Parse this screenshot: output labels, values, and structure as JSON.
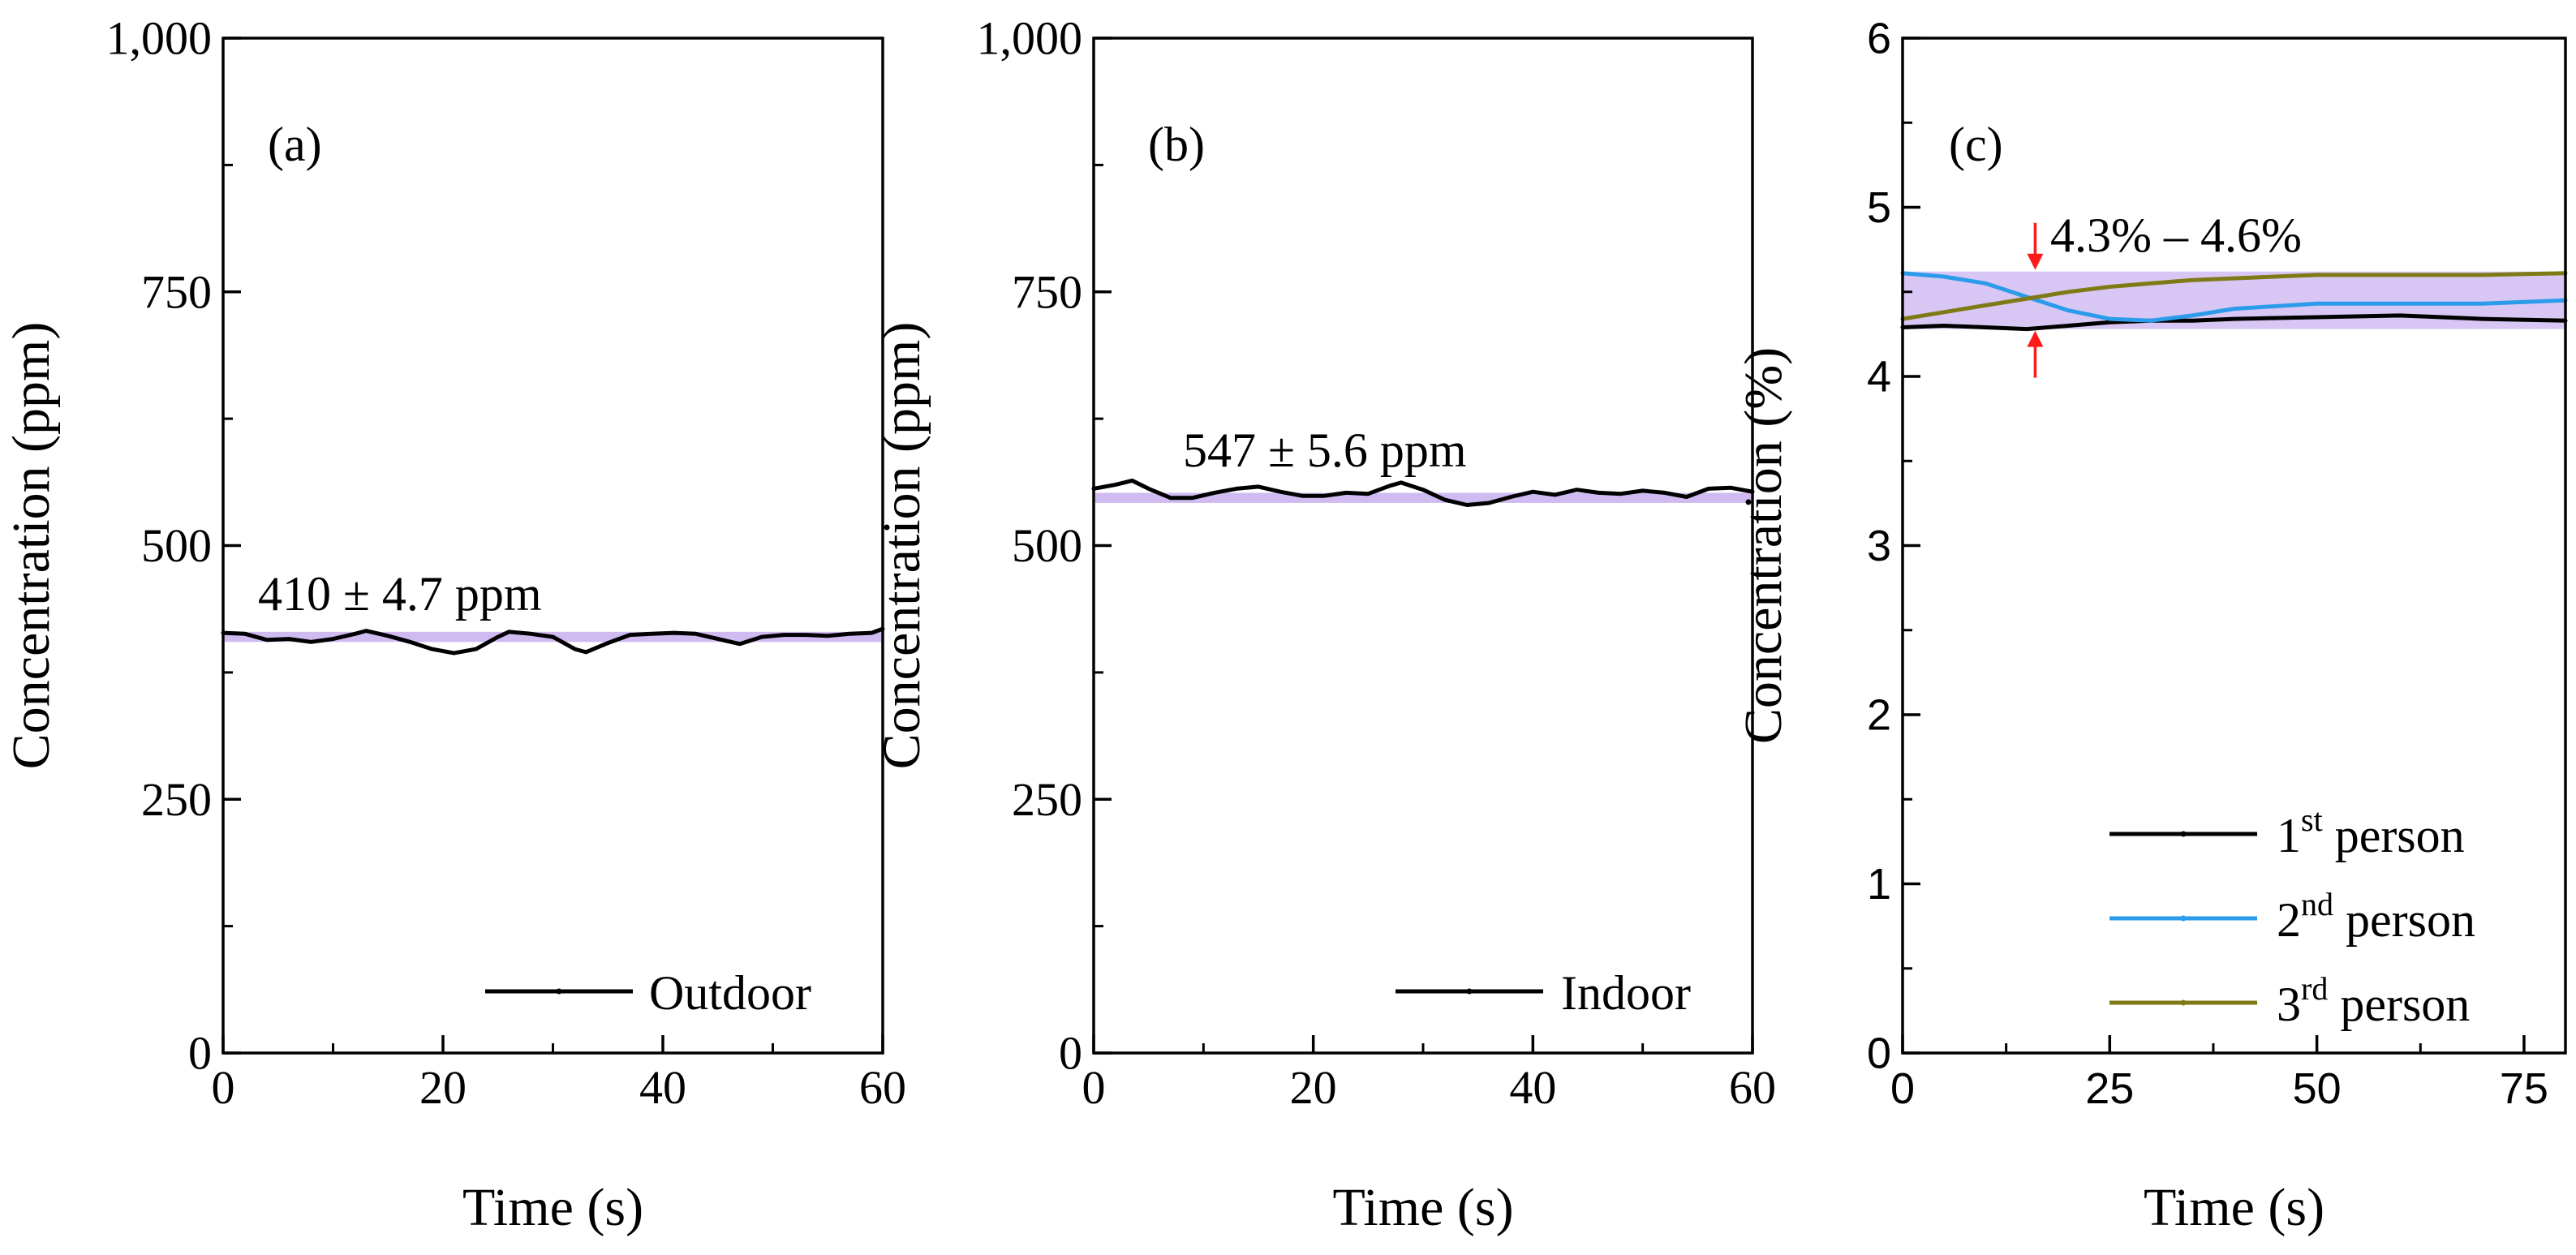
{
  "colors": {
    "axis": "#000000",
    "band": "#cbb4f0",
    "series_black": "#000000",
    "series_blue": "#2c9bea",
    "series_olive": "#7f7a16",
    "arrow": "#ff1a1a"
  },
  "chart_data": [
    {
      "type": "line",
      "panel_label": "(a)",
      "xlabel": "Time (s)",
      "ylabel": "Concentration (ppm)",
      "xlim": [
        0,
        60
      ],
      "ylim": [
        0,
        1000
      ],
      "xticks": [
        0,
        20,
        40,
        60
      ],
      "xtick_labels": [
        "0",
        "20",
        "40",
        "60"
      ],
      "yticks": [
        0,
        250,
        500,
        750,
        1000
      ],
      "ytick_labels": [
        "0",
        "250",
        "500",
        "750",
        "1,000"
      ],
      "annotation": "410 ± 4.7 ppm",
      "band": [
        405,
        415
      ],
      "legend": [
        {
          "name": "Outdoor"
        }
      ],
      "series": [
        {
          "name": "Outdoor",
          "x": [
            0,
            2,
            4,
            6,
            8,
            10,
            12,
            13,
            15,
            17,
            19,
            21,
            23,
            25,
            26,
            28,
            30,
            32,
            33,
            35,
            37,
            39,
            41,
            43,
            45,
            47,
            49,
            51,
            53,
            55,
            57,
            59,
            60
          ],
          "y": [
            414,
            413,
            407,
            408,
            405,
            408,
            413,
            416,
            411,
            405,
            398,
            394,
            398,
            410,
            415,
            413,
            410,
            398,
            395,
            404,
            412,
            413,
            414,
            413,
            408,
            403,
            410,
            412,
            412,
            411,
            413,
            414,
            418
          ]
        }
      ]
    },
    {
      "type": "line",
      "panel_label": "(b)",
      "xlabel": "Time (s)",
      "ylabel": "Concentration (ppm)",
      "xlim": [
        0,
        60
      ],
      "ylim": [
        0,
        1000
      ],
      "xticks": [
        0,
        20,
        40,
        60
      ],
      "xtick_labels": [
        "0",
        "20",
        "40",
        "60"
      ],
      "yticks": [
        0,
        250,
        500,
        750,
        1000
      ],
      "ytick_labels": [
        "0",
        "250",
        "500",
        "750",
        "1,000"
      ],
      "annotation": "547 ± 5.6 ppm",
      "band": [
        542,
        552
      ],
      "legend": [
        {
          "name": "Indoor"
        }
      ],
      "series": [
        {
          "name": "Indoor",
          "x": [
            0,
            2,
            3.5,
            5,
            7,
            9,
            11,
            13,
            15,
            17,
            19,
            21,
            23,
            25,
            27,
            28,
            30,
            32,
            34,
            36,
            38,
            40,
            42,
            44,
            46,
            48,
            50,
            52,
            54,
            56,
            58,
            60
          ],
          "y": [
            556,
            560,
            564,
            556,
            547,
            547,
            552,
            556,
            558,
            553,
            549,
            549,
            552,
            551,
            559,
            562,
            555,
            545,
            540,
            542,
            548,
            553,
            550,
            555,
            552,
            551,
            554,
            552,
            548,
            556,
            557,
            553
          ]
        }
      ]
    },
    {
      "type": "line",
      "panel_label": "(c)",
      "xlabel": "Time (s)",
      "ylabel": "Concentration (%)",
      "xlim": [
        0,
        80
      ],
      "ylim": [
        0,
        6
      ],
      "xticks": [
        0,
        25,
        50,
        75
      ],
      "xtick_labels": [
        "0",
        "25",
        "50",
        "75"
      ],
      "yticks": [
        0,
        1,
        2,
        3,
        4,
        5,
        6
      ],
      "ytick_labels": [
        "0",
        "1",
        "2",
        "3",
        "4",
        "5",
        "6"
      ],
      "annotation": "4.3% – 4.6%",
      "band": [
        4.28,
        4.62
      ],
      "arrow_x": 16,
      "legend": [
        {
          "name": "1",
          "sup": "st",
          "suffix": " person"
        },
        {
          "name": "2",
          "sup": "nd",
          "suffix": " person"
        },
        {
          "name": "3",
          "sup": "rd",
          "suffix": " person"
        }
      ],
      "series": [
        {
          "name": "1st person",
          "x": [
            0,
            5,
            10,
            15,
            20,
            25,
            30,
            35,
            40,
            50,
            60,
            70,
            80
          ],
          "y": [
            4.29,
            4.3,
            4.29,
            4.28,
            4.3,
            4.32,
            4.33,
            4.33,
            4.34,
            4.35,
            4.36,
            4.34,
            4.33
          ]
        },
        {
          "name": "2nd person",
          "x": [
            0,
            5,
            10,
            15,
            20,
            25,
            30,
            35,
            40,
            50,
            60,
            70,
            80
          ],
          "y": [
            4.61,
            4.59,
            4.55,
            4.47,
            4.39,
            4.34,
            4.33,
            4.36,
            4.4,
            4.43,
            4.43,
            4.43,
            4.45
          ]
        },
        {
          "name": "3rd person",
          "x": [
            0,
            5,
            10,
            15,
            20,
            25,
            30,
            35,
            40,
            50,
            60,
            70,
            80
          ],
          "y": [
            4.34,
            4.38,
            4.42,
            4.46,
            4.5,
            4.53,
            4.55,
            4.57,
            4.58,
            4.6,
            4.6,
            4.6,
            4.61
          ]
        }
      ]
    }
  ]
}
